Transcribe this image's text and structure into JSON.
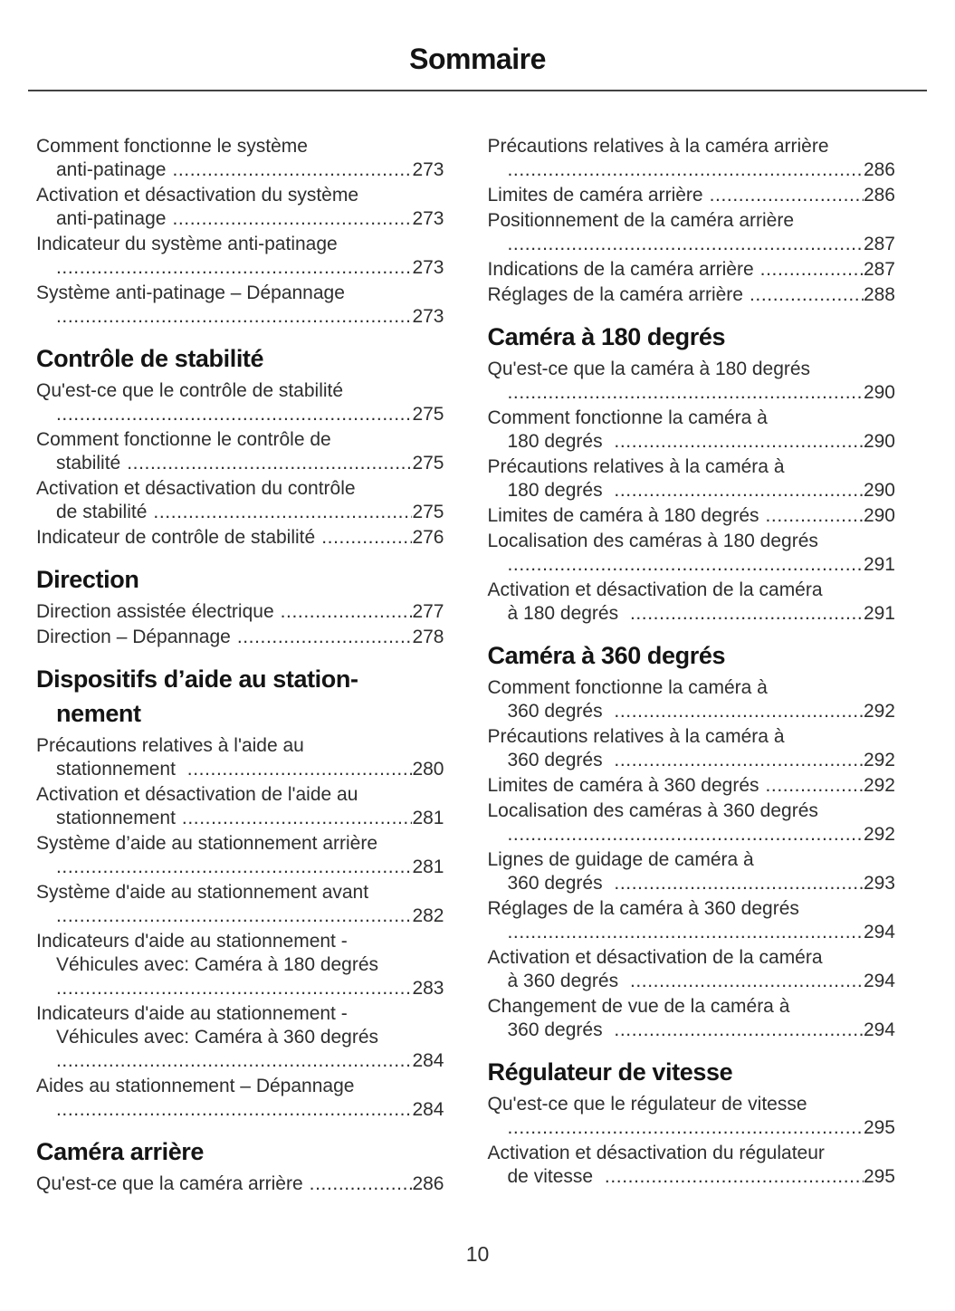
{
  "page": {
    "title": "Sommaire",
    "page_number": "10"
  },
  "colors": {
    "background": "#ffffff",
    "text": "#2e2e2e",
    "heading": "#141414",
    "rule": "#424242"
  },
  "toc": {
    "columns": [
      {
        "side": "left",
        "sections": [
          {
            "heading_lines": [],
            "entries": [
              {
                "lines": [
                  {
                    "text": "Comment fonctionne le système"
                  },
                  {
                    "text": "anti-patinage",
                    "page": "273"
                  }
                ]
              },
              {
                "lines": [
                  {
                    "text": "Activation et désactivation du système"
                  },
                  {
                    "text": "anti-patinage",
                    "page": "273"
                  }
                ]
              },
              {
                "lines": [
                  {
                    "text": "Indicateur du système anti-patinage"
                  },
                  {
                    "text": "",
                    "page": "273"
                  }
                ]
              },
              {
                "lines": [
                  {
                    "text": "Système anti-patinage – Dépannage"
                  },
                  {
                    "text": "",
                    "page": "273"
                  }
                ]
              }
            ]
          },
          {
            "heading_lines": [
              "Contrôle de stabilité"
            ],
            "entries": [
              {
                "lines": [
                  {
                    "text": "Qu'est-ce que le contrôle de stabilité"
                  },
                  {
                    "text": "",
                    "page": "275"
                  }
                ]
              },
              {
                "lines": [
                  {
                    "text": "Comment fonctionne le contrôle de"
                  },
                  {
                    "text": "stabilité",
                    "page": "275"
                  }
                ]
              },
              {
                "lines": [
                  {
                    "text": "Activation et désactivation du contrôle"
                  },
                  {
                    "text": "de stabilité",
                    "page": "275"
                  }
                ]
              },
              {
                "lines": [
                  {
                    "text": "Indicateur de contrôle de stabilité",
                    "page": "276"
                  }
                ]
              }
            ]
          },
          {
            "heading_lines": [
              "Direction"
            ],
            "entries": [
              {
                "lines": [
                  {
                    "text": "Direction assistée électrique",
                    "page": "277"
                  }
                ]
              },
              {
                "lines": [
                  {
                    "text": "Direction – Dépannage",
                    "page": "278"
                  }
                ]
              }
            ]
          },
          {
            "heading_lines": [
              "Dispositifs d’aide au station-",
              "nement"
            ],
            "entries": [
              {
                "lines": [
                  {
                    "text": "Précautions relatives à l'aide au"
                  },
                  {
                    "text": "stationnement ",
                    "page": "280"
                  }
                ]
              },
              {
                "lines": [
                  {
                    "text": "Activation et désactivation de l'aide au"
                  },
                  {
                    "text": "stationnement",
                    "page": "281"
                  }
                ]
              },
              {
                "lines": [
                  {
                    "text": "Système d’aide au stationnement arrière"
                  },
                  {
                    "text": "",
                    "page": "281"
                  }
                ]
              },
              {
                "lines": [
                  {
                    "text": "Système d'aide au stationnement avant"
                  },
                  {
                    "text": "",
                    "page": "282"
                  }
                ]
              },
              {
                "lines": [
                  {
                    "text": "Indicateurs d'aide au stationnement -"
                  },
                  {
                    "text": "Véhicules avec: Caméra à 180 degrés"
                  },
                  {
                    "text": "",
                    "page": "283"
                  }
                ]
              },
              {
                "lines": [
                  {
                    "text": "Indicateurs d'aide au stationnement -"
                  },
                  {
                    "text": "Véhicules avec: Caméra à 360 degrés"
                  },
                  {
                    "text": "",
                    "page": "284"
                  }
                ]
              },
              {
                "lines": [
                  {
                    "text": "Aides au stationnement – Dépannage"
                  },
                  {
                    "text": "",
                    "page": "284"
                  }
                ]
              }
            ]
          },
          {
            "heading_lines": [
              "Caméra arrière"
            ],
            "entries": [
              {
                "lines": [
                  {
                    "text": "Qu'est-ce que la caméra arrière",
                    "page": "286"
                  }
                ]
              }
            ]
          }
        ]
      },
      {
        "side": "right",
        "sections": [
          {
            "heading_lines": [],
            "entries": [
              {
                "lines": [
                  {
                    "text": "Précautions relatives à la caméra arrière"
                  },
                  {
                    "text": "",
                    "page": "286"
                  }
                ]
              },
              {
                "lines": [
                  {
                    "text": "Limites de caméra arrière",
                    "page": "286"
                  }
                ]
              },
              {
                "lines": [
                  {
                    "text": "Positionnement de la caméra arrière"
                  },
                  {
                    "text": "",
                    "page": "287"
                  }
                ]
              },
              {
                "lines": [
                  {
                    "text": "Indications de la caméra arrière",
                    "page": "287"
                  }
                ]
              },
              {
                "lines": [
                  {
                    "text": "Réglages de la caméra arrière",
                    "page": "288"
                  }
                ]
              }
            ]
          },
          {
            "heading_lines": [
              "Caméra à 180 degrés"
            ],
            "entries": [
              {
                "lines": [
                  {
                    "text": "Qu'est-ce que la caméra à 180 degrés"
                  },
                  {
                    "text": "",
                    "page": "290"
                  }
                ]
              },
              {
                "lines": [
                  {
                    "text": "Comment fonctionne la caméra à"
                  },
                  {
                    "text": "180 degrés ",
                    "page": "290"
                  }
                ]
              },
              {
                "lines": [
                  {
                    "text": "Précautions relatives à la caméra à"
                  },
                  {
                    "text": "180 degrés ",
                    "page": "290"
                  }
                ]
              },
              {
                "lines": [
                  {
                    "text": "Limites de caméra à 180 degrés",
                    "page": "290"
                  }
                ]
              },
              {
                "lines": [
                  {
                    "text": "Localisation des caméras à 180 degrés"
                  },
                  {
                    "text": "",
                    "page": "291"
                  }
                ]
              },
              {
                "lines": [
                  {
                    "text": "Activation et désactivation de la caméra"
                  },
                  {
                    "text": "à 180 degrés ",
                    "page": "291"
                  }
                ]
              }
            ]
          },
          {
            "heading_lines": [
              "Caméra à 360 degrés"
            ],
            "entries": [
              {
                "lines": [
                  {
                    "text": "Comment fonctionne la caméra à"
                  },
                  {
                    "text": "360 degrés ",
                    "page": "292"
                  }
                ]
              },
              {
                "lines": [
                  {
                    "text": "Précautions relatives à la caméra à"
                  },
                  {
                    "text": "360 degrés ",
                    "page": "292"
                  }
                ]
              },
              {
                "lines": [
                  {
                    "text": "Limites de caméra à 360 degrés",
                    "page": "292"
                  }
                ]
              },
              {
                "lines": [
                  {
                    "text": "Localisation des caméras à 360 degrés"
                  },
                  {
                    "text": "",
                    "page": "292"
                  }
                ]
              },
              {
                "lines": [
                  {
                    "text": "Lignes de guidage de caméra à"
                  },
                  {
                    "text": "360 degrés ",
                    "page": "293"
                  }
                ]
              },
              {
                "lines": [
                  {
                    "text": "Réglages de la caméra à 360 degrés"
                  },
                  {
                    "text": "",
                    "page": "294"
                  }
                ]
              },
              {
                "lines": [
                  {
                    "text": "Activation et désactivation de la caméra"
                  },
                  {
                    "text": "à 360 degrés ",
                    "page": "294"
                  }
                ]
              },
              {
                "lines": [
                  {
                    "text": "Changement de vue de la caméra à"
                  },
                  {
                    "text": "360 degrés ",
                    "page": "294"
                  }
                ]
              }
            ]
          },
          {
            "heading_lines": [
              "Régulateur de vitesse"
            ],
            "entries": [
              {
                "lines": [
                  {
                    "text": "Qu'est-ce que le régulateur de vitesse"
                  },
                  {
                    "text": "",
                    "page": "295"
                  }
                ]
              },
              {
                "lines": [
                  {
                    "text": "Activation et désactivation du régulateur"
                  },
                  {
                    "text": "de vitesse ",
                    "page": "295"
                  }
                ]
              }
            ]
          }
        ]
      }
    ]
  }
}
